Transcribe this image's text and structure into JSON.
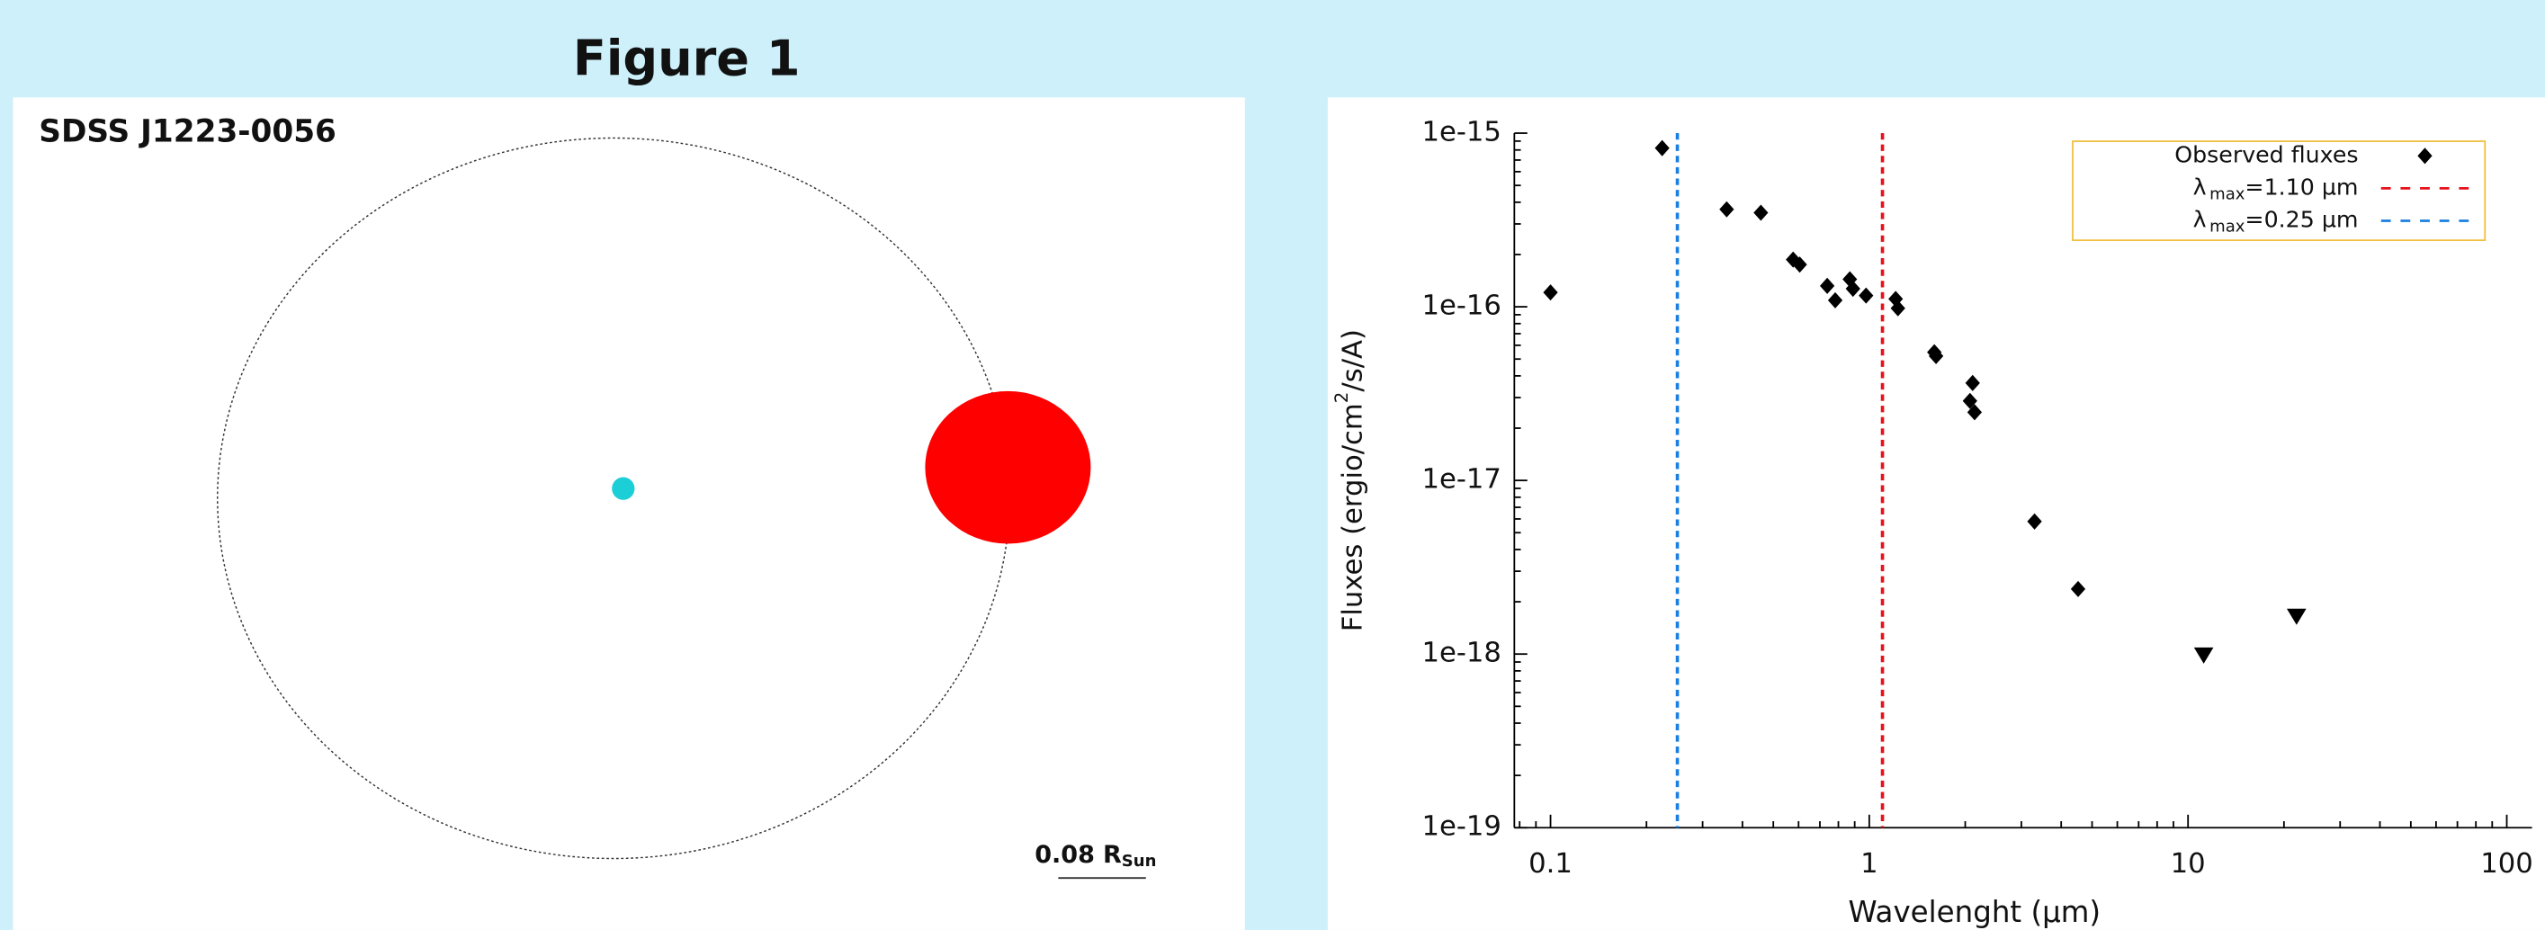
{
  "figure_title": "Figure 1",
  "chart_data": [
    {
      "type": "orbit",
      "title": "SDSS J1223-0056",
      "scale_label": {
        "value": 0.08,
        "unit": "R",
        "sub": "Sun"
      }
    },
    {
      "type": "scatter",
      "xlabel": "Wavelenght (µm)",
      "ylabel": {
        "text": "Fluxes (ergio/cm",
        "sup": "2",
        "rest": "/s/A)"
      },
      "xscale": "log",
      "yscale": "log",
      "xlim": [
        0.077,
        120
      ],
      "ylim": [
        1e-19,
        1e-15
      ],
      "xticks": [
        0.1,
        1,
        10,
        100
      ],
      "yticks": [
        {
          "value": 1e-19,
          "label": "1e-19"
        },
        {
          "value": 1e-18,
          "label": "1e-18"
        },
        {
          "value": 1e-17,
          "label": "1e-17"
        },
        {
          "value": 1e-16,
          "label": "1e-16"
        },
        {
          "value": 1e-15,
          "label": "1e-15"
        }
      ],
      "legend": "upper right",
      "series": [
        {
          "name": "Observed fluxes",
          "color": "#000000",
          "marker": "diamond",
          "x": [
            0.1,
            0.224,
            0.357,
            0.457,
            0.577,
            0.605,
            0.738,
            0.782,
            0.869,
            0.889,
            0.977,
            1.21,
            1.23,
            1.6,
            1.62,
            2.11,
            2.07,
            2.14,
            3.3,
            4.52
          ],
          "values": [
            1.21e-16,
            8.2e-16,
            3.64e-16,
            3.48e-16,
            1.87e-16,
            1.75e-16,
            1.32e-16,
            1.09e-16,
            1.44e-16,
            1.27e-16,
            1.16e-16,
            1.11e-16,
            9.8e-17,
            5.47e-17,
            5.2e-17,
            3.64e-17,
            2.87e-17,
            2.47e-17,
            5.8e-18,
            2.37e-18
          ]
        },
        {
          "color": "#000000",
          "marker": "triangle-down",
          "x": [
            11.2,
            21.9
          ],
          "values": [
            9.8e-19,
            1.64e-18
          ]
        }
      ],
      "vlines": [
        {
          "value": 1.1,
          "color": "#e8101a",
          "symbol": "λ",
          "sub": "max",
          "label": "=1.10 µm"
        },
        {
          "value": 0.25,
          "color": "#1a7fe0",
          "symbol": "λ",
          "sub": "max",
          "label": "=0.25 µm"
        }
      ]
    }
  ]
}
